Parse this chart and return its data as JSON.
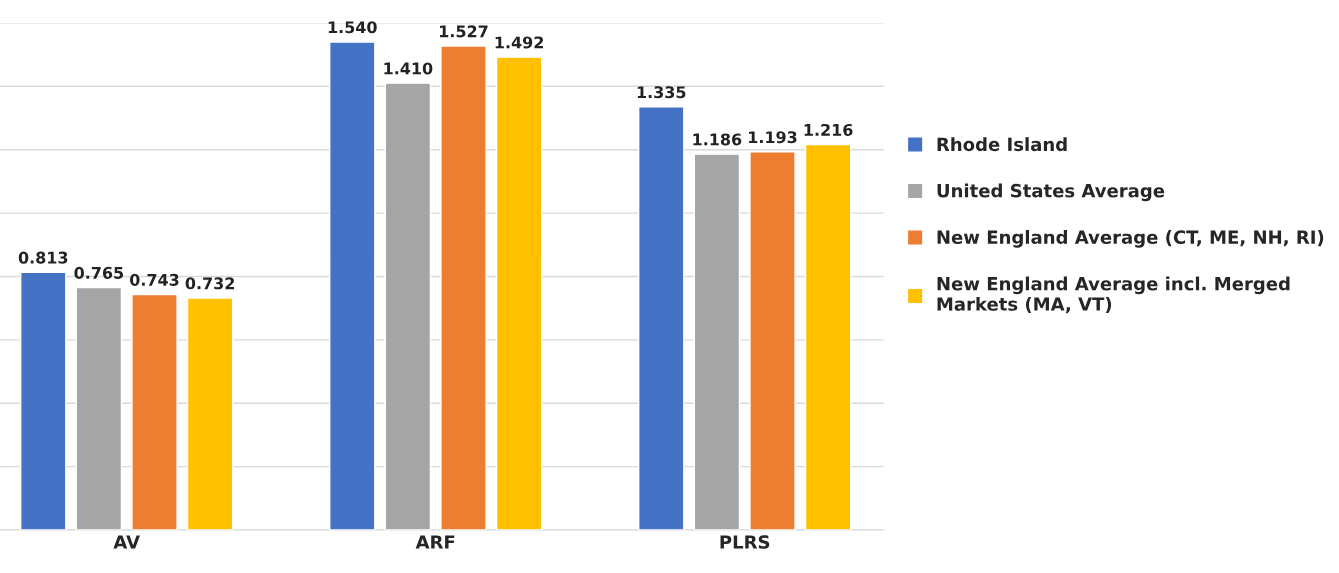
{
  "chart_data": {
    "type": "bar",
    "categories": [
      "AV",
      "ARF",
      "PLRS"
    ],
    "series": [
      {
        "name": "Rhode Island",
        "color": "#4472c4",
        "values": [
          0.813,
          1.54,
          1.335
        ],
        "value_labels": [
          "0.813",
          "1.540",
          "1.335"
        ]
      },
      {
        "name": "United States Average",
        "color": "#a5a5a5",
        "values": [
          0.765,
          1.41,
          1.186
        ],
        "value_labels": [
          "0.765",
          "1.410",
          "1.186"
        ]
      },
      {
        "name": "New England Average (CT, ME, NH, RI)",
        "color": "#ed7d31",
        "values": [
          0.743,
          1.527,
          1.193
        ],
        "value_labels": [
          "0.743",
          "1.527",
          "1.193"
        ]
      },
      {
        "name": "New England Average incl. Merged\nMarkets (MA, VT)",
        "color": "#ffc000",
        "values": [
          0.732,
          1.492,
          1.216
        ],
        "value_labels": [
          "0.732",
          "1.492",
          "1.216"
        ]
      }
    ],
    "ylim": [
      0,
      1.6
    ],
    "yticks": [
      {
        "value": 0,
        "label": null
      },
      {
        "value": 0.2,
        "label": null
      },
      {
        "value": 0.4,
        "label": null
      },
      {
        "value": 0.6,
        "label": null
      },
      {
        "value": 0.8,
        "label": null
      },
      {
        "value": 1.0,
        "label": null
      },
      {
        "value": 1.2,
        "label": null
      },
      {
        "value": 1.4,
        "label": null
      },
      {
        "value": 1.6,
        "label": null
      }
    ],
    "grid": "y",
    "legend": "right",
    "tick_labels": "x"
  }
}
